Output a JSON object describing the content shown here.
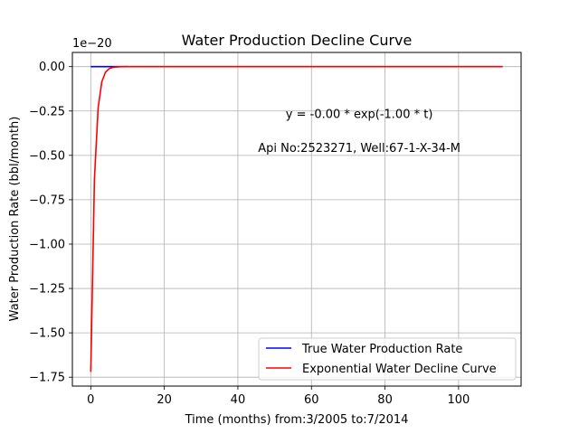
{
  "chart_data": {
    "type": "line",
    "title": "Water Production Decline Curve",
    "xlabel": "Time (months) from:3/2005 to:7/2014",
    "ylabel": "Water Production Rate (bbl/month)",
    "y_offset_label": "1e−20",
    "xlim": [
      -5,
      117
    ],
    "ylim": [
      -1.8,
      0.08
    ],
    "grid": true,
    "legend_position": "lower-right",
    "x_ticks": [
      0,
      20,
      40,
      60,
      80,
      100
    ],
    "x_tick_labels": [
      "0",
      "20",
      "40",
      "60",
      "80",
      "100"
    ],
    "y_ticks": [
      0.0,
      -0.25,
      -0.5,
      -0.75,
      -1.0,
      -1.25,
      -1.5,
      -1.75
    ],
    "y_tick_labels": [
      "0.00",
      "−0.25",
      "−0.50",
      "−0.75",
      "−1.00",
      "−1.25",
      "−1.50",
      "−1.75"
    ],
    "annotations": [
      {
        "text": "y = -0.00 * exp(-1.00 * t)",
        "x": 73,
        "y": -0.29
      },
      {
        "text": "Api No:2523271, Well:67-1-X-34-M",
        "x": 73,
        "y": -0.48
      }
    ],
    "series": [
      {
        "name": "True Water Production Rate",
        "color": "#0000ff",
        "x": [
          0,
          1,
          2,
          3,
          4,
          5,
          6,
          7,
          8,
          9,
          10
        ],
        "y": [
          0,
          0,
          0,
          0,
          0,
          0,
          0,
          0,
          0,
          0,
          0
        ]
      },
      {
        "name": "Exponential Water Decline Curve",
        "color": "#ff0000",
        "x": [
          0,
          1,
          2,
          3,
          4,
          5,
          6,
          7,
          8,
          10,
          20,
          40,
          60,
          80,
          100,
          112
        ],
        "y": [
          -1.72,
          -0.633,
          -0.233,
          -0.0856,
          -0.0315,
          -0.0116,
          -0.0043,
          -0.0016,
          -0.0006,
          -8e-05,
          0,
          0,
          0,
          0,
          0,
          0
        ]
      }
    ]
  }
}
